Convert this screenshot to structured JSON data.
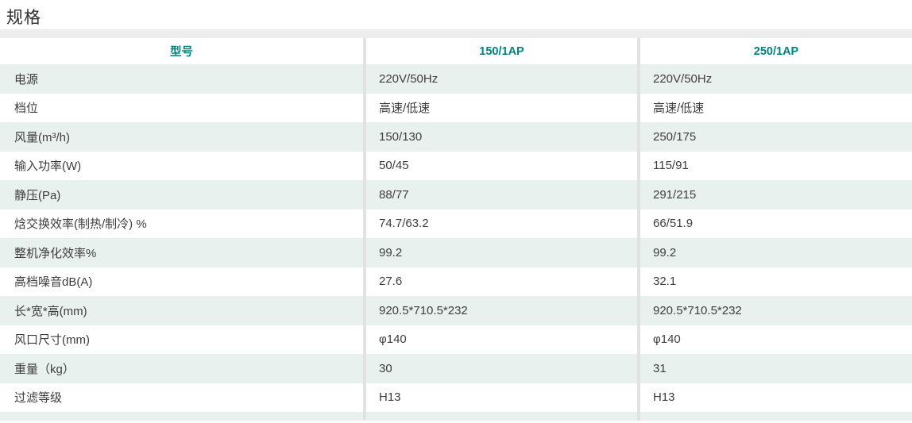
{
  "page": {
    "title": "规格"
  },
  "colors": {
    "accent": "#00847e",
    "row_tint": "#e9f1ee",
    "divider": "#e2e2e2",
    "strip": "#ededed"
  },
  "table": {
    "header": {
      "col0": "型号",
      "col1": "150/1AP",
      "col2": "250/1AP"
    },
    "rows": [
      {
        "label": "电源",
        "col1": "220V/50Hz",
        "col2": "220V/50Hz"
      },
      {
        "label": "档位",
        "col1": "高速/低速",
        "col2": "高速/低速"
      },
      {
        "label": "风量(m³/h)",
        "col1": "150/130",
        "col2": "250/175"
      },
      {
        "label": "输入功率(W)",
        "col1": "50/45",
        "col2": "115/91"
      },
      {
        "label": "静压(Pa)",
        "col1": "88/77",
        "col2": "291/215"
      },
      {
        "label": "焓交换效率(制热/制冷) %",
        "col1": "74.7/63.2",
        "col2": "66/51.9"
      },
      {
        "label": "整机净化效率%",
        "col1": "99.2",
        "col2": "99.2"
      },
      {
        "label": "高档噪音dB(A)",
        "col1": "27.6",
        "col2": "32.1"
      },
      {
        "label": "长*宽*高(mm)",
        "col1": "920.5*710.5*232",
        "col2": "920.5*710.5*232"
      },
      {
        "label": "风口尺寸(mm)",
        "col1": "φ140",
        "col2": "φ140"
      },
      {
        "label": "重量（kg）",
        "col1": "30",
        "col2": "31"
      },
      {
        "label": "过滤等级",
        "col1": "H13",
        "col2": "H13"
      }
    ]
  }
}
